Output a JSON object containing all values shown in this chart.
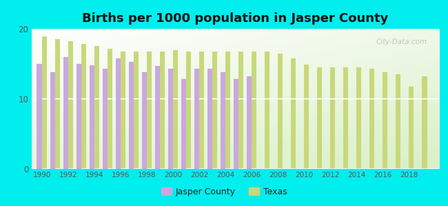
{
  "title": "Births per 1000 population in Jasper County",
  "background_color": "#00EEEE",
  "years": [
    1990,
    1991,
    1992,
    1993,
    1994,
    1995,
    1996,
    1997,
    1998,
    1999,
    2000,
    2001,
    2002,
    2003,
    2004,
    2005,
    2006,
    2007,
    2008,
    2009,
    2010,
    2011,
    2012,
    2013,
    2014,
    2015,
    2016,
    2017,
    2018,
    2019
  ],
  "jasper": [
    15.0,
    13.8,
    16.0,
    15.0,
    14.8,
    14.3,
    15.8,
    15.3,
    13.8,
    14.7,
    14.3,
    12.8,
    14.3,
    14.3,
    13.8,
    12.8,
    13.2,
    null,
    null,
    null,
    null,
    null,
    null,
    null,
    null,
    null,
    null,
    null,
    null,
    null
  ],
  "texas": [
    18.9,
    18.5,
    18.2,
    17.8,
    17.5,
    17.2,
    16.8,
    16.8,
    16.8,
    16.8,
    17.0,
    16.8,
    16.8,
    16.8,
    16.8,
    16.8,
    16.8,
    16.8,
    16.5,
    15.8,
    14.9,
    14.5,
    14.5,
    14.5,
    14.5,
    14.3,
    13.8,
    13.5,
    11.8,
    13.2
  ],
  "jasper_color": "#C9A8E0",
  "texas_color": "#C8D87A",
  "bar_width": 0.38,
  "ylim": [
    0,
    20
  ],
  "yticks": [
    0,
    10,
    20
  ],
  "legend_jasper": "Jasper County",
  "legend_texas": "Texas",
  "title_fontsize": 13,
  "watermark": "City-Data.com"
}
